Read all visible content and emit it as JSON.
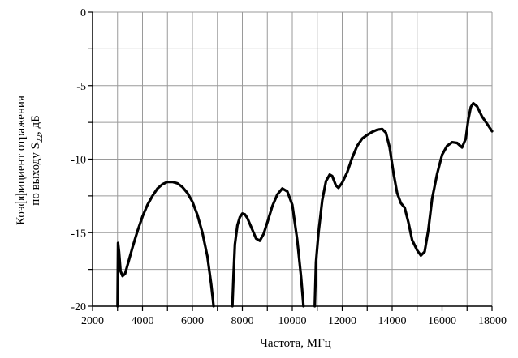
{
  "chart_data": {
    "type": "line",
    "xlabel": "Частота, МГц",
    "ylabel_line1": "Коэффициент отражения",
    "ylabel_line2_prefix": "по выходу S",
    "ylabel_line2_subscript": "22",
    "ylabel_line2_suffix": ", дБ",
    "xlim": [
      2000,
      18000
    ],
    "ylim": [
      -20,
      0
    ],
    "x_ticks": [
      2000,
      4000,
      6000,
      8000,
      10000,
      12000,
      14000,
      16000,
      18000
    ],
    "x_tick_labels": [
      "2000",
      "4000",
      "6000",
      "8000",
      "10000",
      "12000",
      "14000",
      "16000",
      "18000"
    ],
    "y_ticks": [
      0,
      -5,
      -10,
      -15,
      -20
    ],
    "y_tick_labels": [
      "0",
      "-5",
      "-10",
      "-15",
      "-20"
    ],
    "grid": true,
    "line_color": "#000000",
    "series": [
      {
        "segments": [
          [
            [
              3000,
              -20
            ],
            [
              3020,
              -15.7
            ],
            [
              3060,
              -16.3
            ],
            [
              3120,
              -17.6
            ],
            [
              3200,
              -17.95
            ],
            [
              3300,
              -17.8
            ],
            [
              3400,
              -17.2
            ],
            [
              3600,
              -16.0
            ],
            [
              3800,
              -14.9
            ],
            [
              4000,
              -13.9
            ],
            [
              4200,
              -13.1
            ],
            [
              4400,
              -12.5
            ],
            [
              4600,
              -12.0
            ],
            [
              4800,
              -11.7
            ],
            [
              5000,
              -11.55
            ],
            [
              5200,
              -11.55
            ],
            [
              5400,
              -11.65
            ],
            [
              5600,
              -11.9
            ],
            [
              5800,
              -12.3
            ],
            [
              6000,
              -12.9
            ],
            [
              6200,
              -13.8
            ],
            [
              6400,
              -15.0
            ],
            [
              6600,
              -16.6
            ],
            [
              6750,
              -18.5
            ],
            [
              6850,
              -20
            ]
          ],
          [
            [
              7600,
              -20
            ],
            [
              7650,
              -17.8
            ],
            [
              7700,
              -15.8
            ],
            [
              7800,
              -14.5
            ],
            [
              7900,
              -13.95
            ],
            [
              8000,
              -13.7
            ],
            [
              8100,
              -13.75
            ],
            [
              8200,
              -14.0
            ],
            [
              8400,
              -14.8
            ],
            [
              8550,
              -15.4
            ],
            [
              8700,
              -15.55
            ],
            [
              8850,
              -15.1
            ],
            [
              9000,
              -14.3
            ],
            [
              9200,
              -13.2
            ],
            [
              9400,
              -12.4
            ],
            [
              9600,
              -12.0
            ],
            [
              9800,
              -12.2
            ],
            [
              10000,
              -13.1
            ],
            [
              10200,
              -15.5
            ],
            [
              10350,
              -18.0
            ],
            [
              10450,
              -20
            ]
          ],
          [
            [
              10900,
              -20
            ],
            [
              10950,
              -17.0
            ],
            [
              11050,
              -15.0
            ],
            [
              11200,
              -12.8
            ],
            [
              11350,
              -11.5
            ],
            [
              11500,
              -11.05
            ],
            [
              11600,
              -11.15
            ],
            [
              11750,
              -11.8
            ],
            [
              11850,
              -11.95
            ],
            [
              12000,
              -11.6
            ],
            [
              12200,
              -10.9
            ],
            [
              12400,
              -9.9
            ],
            [
              12600,
              -9.1
            ],
            [
              12800,
              -8.6
            ],
            [
              13000,
              -8.35
            ],
            [
              13200,
              -8.15
            ],
            [
              13400,
              -8.0
            ],
            [
              13600,
              -7.95
            ],
            [
              13750,
              -8.2
            ],
            [
              13900,
              -9.2
            ],
            [
              14050,
              -10.9
            ],
            [
              14200,
              -12.3
            ],
            [
              14350,
              -13.0
            ],
            [
              14500,
              -13.3
            ],
            [
              14650,
              -14.3
            ],
            [
              14800,
              -15.5
            ],
            [
              15000,
              -16.2
            ],
            [
              15150,
              -16.55
            ],
            [
              15300,
              -16.3
            ],
            [
              15450,
              -14.8
            ],
            [
              15600,
              -12.7
            ],
            [
              15800,
              -11.0
            ],
            [
              16000,
              -9.7
            ],
            [
              16200,
              -9.1
            ],
            [
              16400,
              -8.85
            ],
            [
              16600,
              -8.9
            ],
            [
              16800,
              -9.2
            ],
            [
              16950,
              -8.6
            ],
            [
              17050,
              -7.3
            ],
            [
              17150,
              -6.45
            ],
            [
              17250,
              -6.2
            ],
            [
              17400,
              -6.4
            ],
            [
              17600,
              -7.1
            ],
            [
              17800,
              -7.6
            ],
            [
              18000,
              -8.1
            ]
          ]
        ]
      }
    ]
  }
}
